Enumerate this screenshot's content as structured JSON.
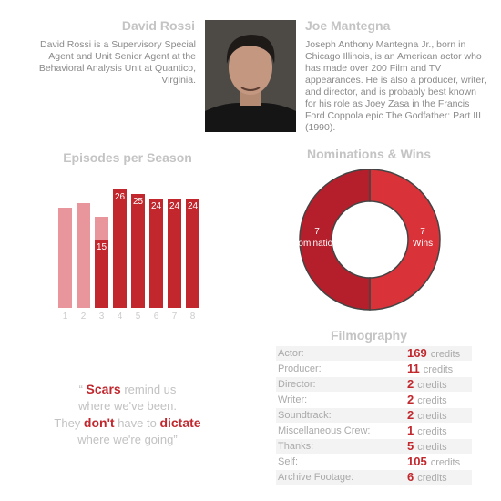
{
  "left": {
    "name": "David Rossi",
    "bio": "David Rossi is a Supervisory Special Agent and Unit Senior Agent at the Behavioral Analysis Unit at Quantico, Virginia."
  },
  "right": {
    "name": "Joe Mantegna",
    "bio": "Joseph Anthony Mantegna Jr., born in Chicago Illinois, is an American actor who has made over 200 Film and TV appearances. He is also a producer, writer, and director, and is probably best known for his role as Joey Zasa in the Francis Ford Coppola epic The Godfather: Part III (1990)."
  },
  "episodes": {
    "type": "bar",
    "stacked": true,
    "title": "Episodes per Season",
    "categories": [
      "1",
      "2",
      "3",
      "4",
      "5",
      "6",
      "7",
      "8"
    ],
    "series": [
      {
        "color": "#c1272d",
        "values": [
          null,
          null,
          15,
          26,
          25,
          24,
          24,
          24
        ],
        "labels": true
      },
      {
        "color": "#e8969c",
        "values": [
          22,
          23,
          5,
          null,
          null,
          null,
          null,
          null
        ]
      }
    ]
  },
  "awards": {
    "type": "donut",
    "title": "Nominations & Wins",
    "categories": [
      "Wins",
      "Nominations"
    ],
    "values": [
      7,
      7
    ],
    "colors": [
      "#d93238",
      "#b51f2c"
    ]
  },
  "filmography": {
    "title": "Filmography",
    "unit": "credits",
    "rows": [
      {
        "label": "Actor:",
        "count": 169
      },
      {
        "label": "Producer:",
        "count": 11
      },
      {
        "label": "Director:",
        "count": 2
      },
      {
        "label": "Writer:",
        "count": 2
      },
      {
        "label": "Soundtrack:",
        "count": 2
      },
      {
        "label": "Miscellaneous Crew:",
        "count": 1
      },
      {
        "label": "Thanks:",
        "count": 5
      },
      {
        "label": "Self:",
        "count": 105
      },
      {
        "label": "Archive Footage:",
        "count": 6
      }
    ]
  },
  "quote": {
    "lines": [
      [
        {
          "text": "“ "
        },
        {
          "text": "Scars",
          "bold": true
        },
        {
          "text": " remind us"
        }
      ],
      [
        {
          "text": "where we've been."
        }
      ],
      [
        {
          "text": "They "
        },
        {
          "text": "don't",
          "bold": true
        },
        {
          "text": " have to "
        },
        {
          "text": "dictate",
          "bold": true
        }
      ],
      [
        {
          "text": "where we're going”"
        }
      ]
    ]
  }
}
